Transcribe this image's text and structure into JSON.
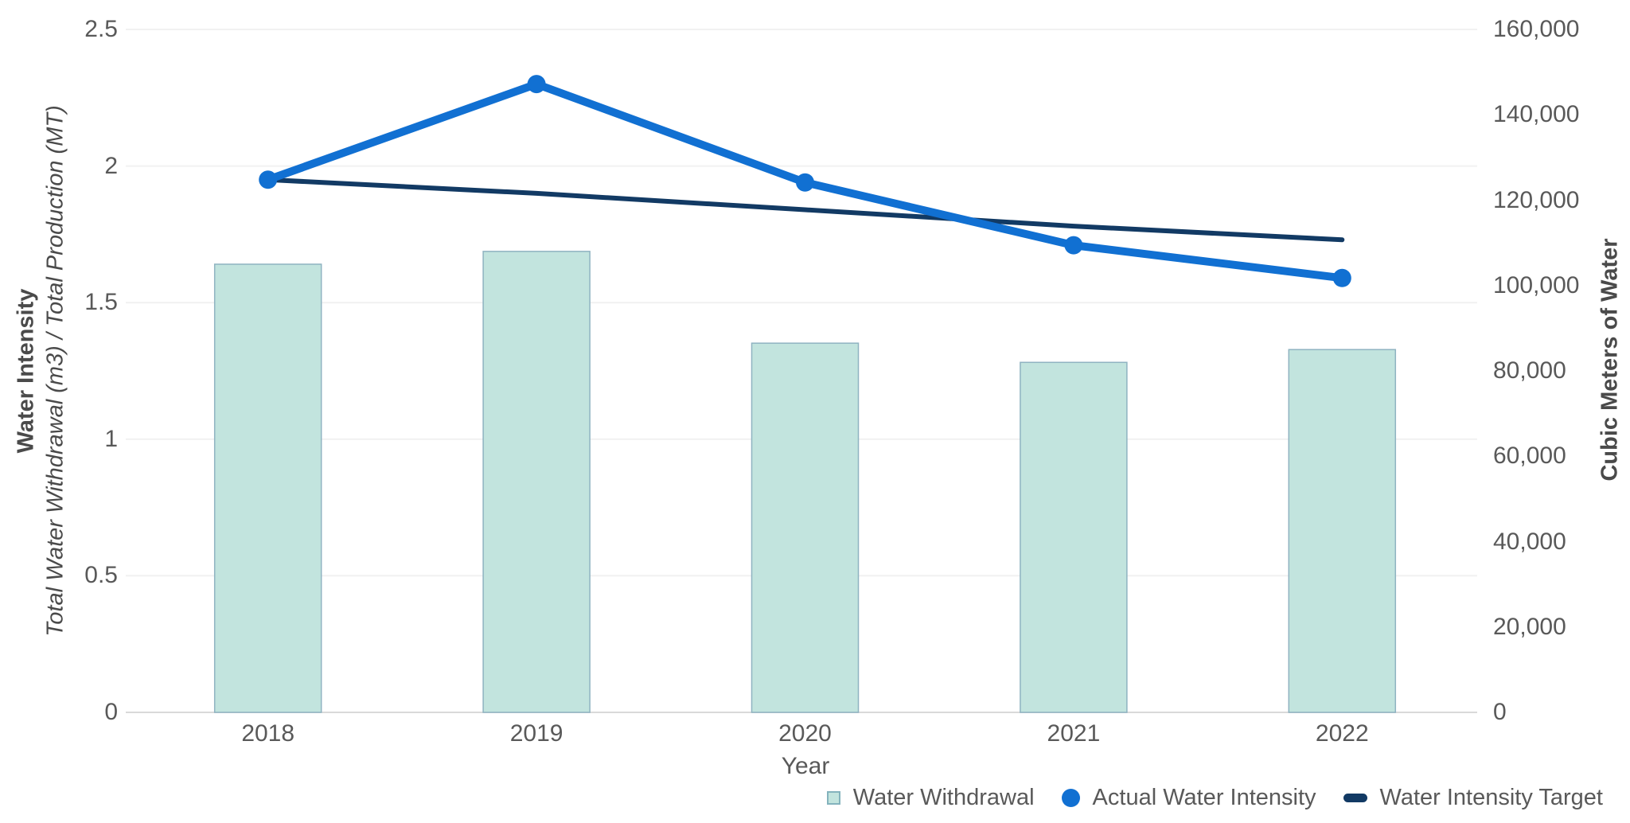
{
  "chart_data": {
    "type": "combo-bar-line",
    "categories": [
      "2018",
      "2019",
      "2020",
      "2021",
      "2022"
    ],
    "series": [
      {
        "name": "Water Withdrawal",
        "type": "bar",
        "axis": "right",
        "values": [
          105000,
          108000,
          86500,
          82000,
          85000
        ],
        "color": "#c2e4de",
        "border_color": "#8fb3c1"
      },
      {
        "name": "Actual Water Intensity",
        "type": "line",
        "axis": "left",
        "values": [
          1.95,
          2.3,
          1.94,
          1.71,
          1.59
        ],
        "color": "#1170d2",
        "marker": "circle",
        "line_width": 10,
        "marker_radius": 11.5
      },
      {
        "name": "Water Intensity Target",
        "type": "line",
        "axis": "left",
        "values": [
          1.95,
          1.9,
          1.84,
          1.78,
          1.73
        ],
        "color": "#123a64",
        "marker": "none",
        "line_width": 6
      }
    ],
    "x_axis": {
      "title": "Year",
      "labels": [
        "2018",
        "2019",
        "2020",
        "2021",
        "2022"
      ]
    },
    "left_axis": {
      "title": "Water Intensity",
      "subtitle": "Total Water Withdrawal (m3) / Total Production (MT)",
      "tick_labels": [
        "0",
        "0.5",
        "1",
        "1.5",
        "2",
        "2.5"
      ],
      "tick_values": [
        0,
        0.5,
        1,
        1.5,
        2,
        2.5
      ],
      "range": [
        0,
        2.5
      ],
      "grid": true
    },
    "right_axis": {
      "title": "Cubic Meters of Water",
      "tick_labels": [
        "0",
        "20,000",
        "40,000",
        "60,000",
        "80,000",
        "100,000",
        "120,000",
        "140,000",
        "160,000"
      ],
      "tick_values": [
        0,
        20000,
        40000,
        60000,
        80000,
        100000,
        120000,
        140000,
        160000
      ],
      "range": [
        0,
        160000
      ],
      "grid": false
    },
    "legend": {
      "position": "bottom-right",
      "items": [
        {
          "label": "Water Withdrawal",
          "marker": "square",
          "color": "#c2e4de",
          "border_color": "#84b3bd"
        },
        {
          "label": "Actual Water Intensity",
          "marker": "circle",
          "color": "#1170d2"
        },
        {
          "label": "Water Intensity Target",
          "marker": "dash",
          "color": "#123a64"
        }
      ]
    },
    "colors": {
      "gridline": "#f1f1f1",
      "axis_line": "#d9d9d9",
      "tick_text": "#595959",
      "title_text": "#4a4a4a"
    }
  }
}
